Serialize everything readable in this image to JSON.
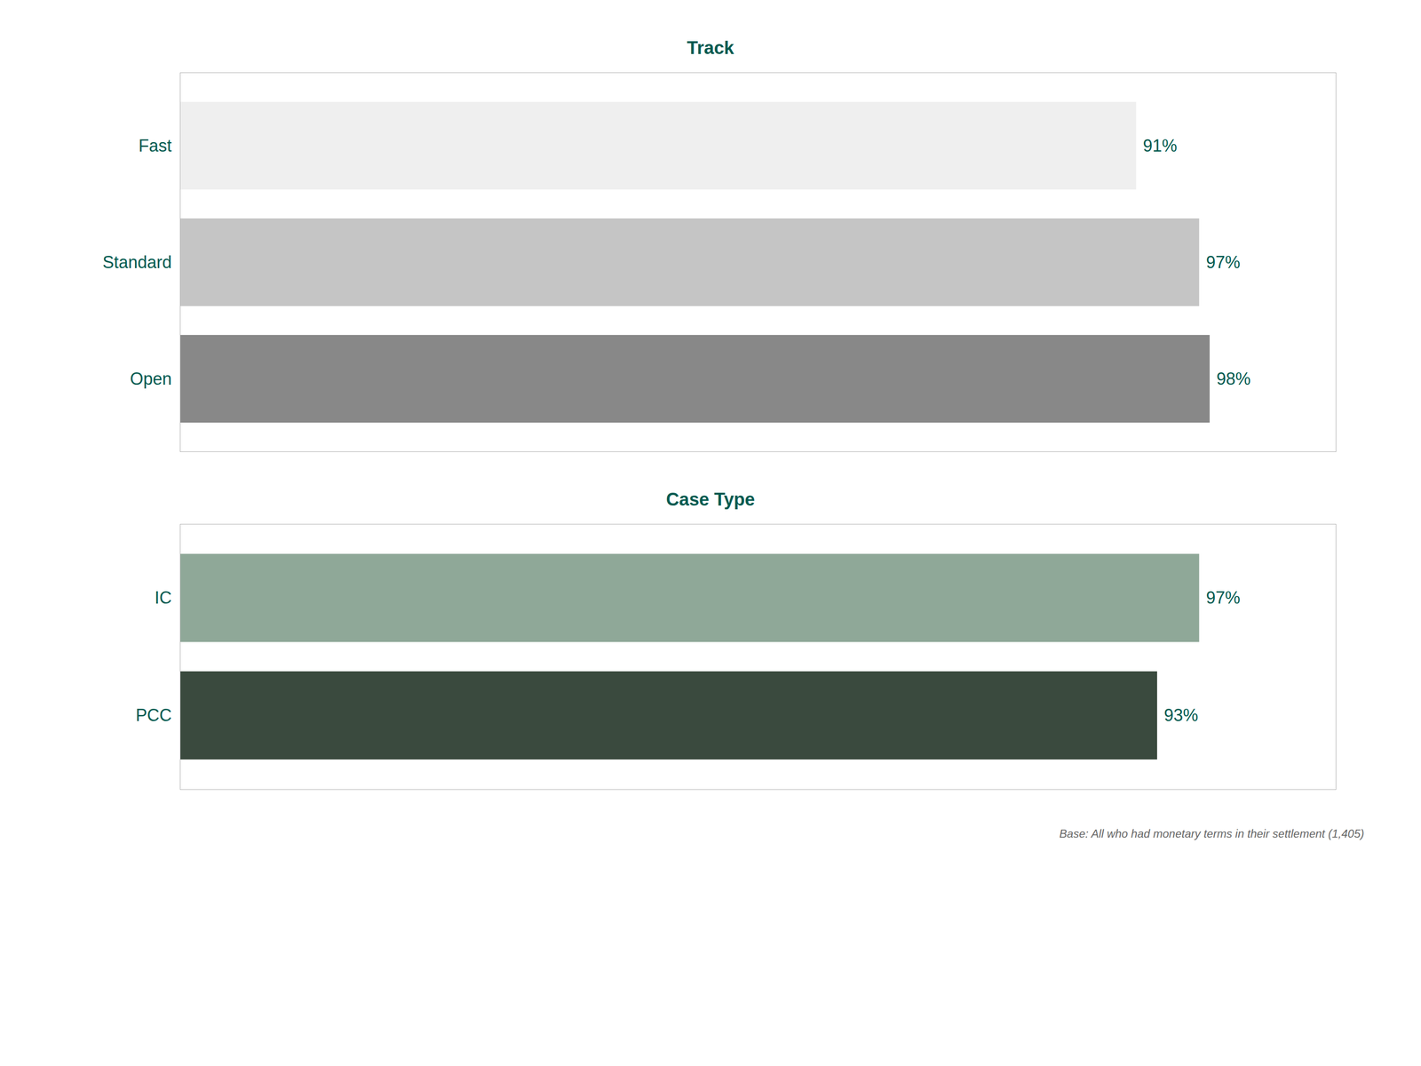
{
  "chart_data": [
    {
      "type": "bar",
      "title": "Track",
      "orientation": "horizontal",
      "categories": [
        "Fast",
        "Standard",
        "Open"
      ],
      "values": [
        91,
        97,
        98
      ],
      "value_labels": [
        "91%",
        "97%",
        "98%"
      ],
      "colors": [
        "#efefef",
        "#c5c5c5",
        "#888888"
      ],
      "xlim": [
        0,
        110
      ],
      "data_labels": true,
      "tick_labels": "y",
      "grid": false
    },
    {
      "type": "bar",
      "title": "Case Type",
      "orientation": "horizontal",
      "categories": [
        "IC",
        "PCC"
      ],
      "values": [
        97,
        93
      ],
      "value_labels": [
        "97%",
        "93%"
      ],
      "colors": [
        "#8fa898",
        "#3a4a3e"
      ],
      "xlim": [
        0,
        110
      ],
      "data_labels": true,
      "tick_labels": "y",
      "grid": false,
      "annotations": [
        "Base: All who had monetary terms in their settlement (1,405)"
      ]
    }
  ]
}
